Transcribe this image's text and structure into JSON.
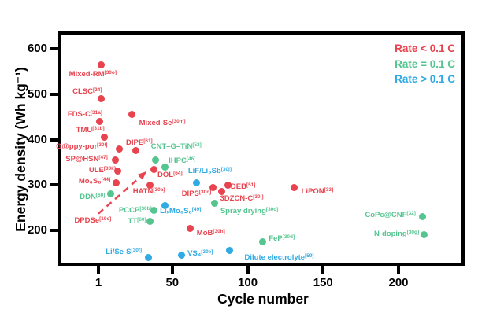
{
  "chart_data": {
    "type": "scatter",
    "title": "",
    "xlabel": "Cycle number",
    "ylabel": "Energy density (Wh kg⁻¹)",
    "x_ticks": [
      1,
      50,
      100,
      150,
      200
    ],
    "y_ticks": [
      600,
      500,
      400,
      300,
      200
    ],
    "xlim": [
      -24,
      244
    ],
    "ylim": [
      122,
      631
    ],
    "grid": false,
    "legend_position": "top-right-inside",
    "legend": [
      {
        "label": "Rate < 0.1 C",
        "color": "#e8434e"
      },
      {
        "label": "Rate = 0.1 C",
        "color": "#55c590"
      },
      {
        "label": "Rate > 0.1 C",
        "color": "#2faae3"
      }
    ],
    "series": [
      {
        "name": "Rate < 0.1 C",
        "color": "#e8434e",
        "points": [
          {
            "label": "Mixed-RM",
            "ref": "[30o]",
            "cycle": 3,
            "energy": 565,
            "dx": -11,
            "dy": 13
          },
          {
            "label": "CLSC",
            "ref": "[24]",
            "cycle": 3,
            "energy": 490,
            "dx": -18,
            "dy": -9
          },
          {
            "label": "FDS-C",
            "ref": "[31a]",
            "cycle": 2,
            "energy": 440,
            "dx": -19,
            "dy": -8
          },
          {
            "label": "TMU",
            "ref": "[31b]",
            "cycle": 5,
            "energy": 405,
            "dx": -18,
            "dy": -9
          },
          {
            "label": "Mixed-Se",
            "ref": "[30m]",
            "cycle": 23,
            "energy": 455,
            "dx": 39,
            "dy": 11
          },
          {
            "label": "G@ppy-por",
            "ref": "[30l]",
            "cycle": 15,
            "energy": 380,
            "dx": -48,
            "dy": -2
          },
          {
            "label": "DIPE",
            "ref": "[61]",
            "cycle": 26,
            "energy": 375,
            "dx": 4,
            "dy": -10
          },
          {
            "label": "SP@HSN",
            "ref": "[47]",
            "cycle": 12,
            "energy": 355,
            "dx": -36,
            "dy": 0
          },
          {
            "label": "ULE",
            "ref": "[30k]",
            "cycle": 14,
            "energy": 330,
            "dx": -20,
            "dy": -1
          },
          {
            "label": "Mo₆S₈",
            "ref": "[44]",
            "cycle": 13,
            "energy": 305,
            "dx": -28,
            "dy": -1
          },
          {
            "label": "DPDSe",
            "ref": "[19c]",
            "cycle": 3,
            "energy": 220,
            "dx": -11,
            "dy": 0,
            "dot": false
          },
          {
            "label": "DOL",
            "ref": "[64]",
            "cycle": 38,
            "energy": 335,
            "dx": 20,
            "dy": 8
          },
          {
            "label": "HATN",
            "ref": "[30a]",
            "cycle": 35,
            "energy": 300,
            "dx": -1,
            "dy": 9
          },
          {
            "label": "DIPS",
            "ref": "[30n]",
            "cycle": 77,
            "energy": 295,
            "dx": -21,
            "dy": 9
          },
          {
            "label": "DEB",
            "ref": "[51]",
            "cycle": 87,
            "energy": 300,
            "dx": 19,
            "dy": 3
          },
          {
            "label": "3DZCN-C",
            "ref": "[30i]",
            "cycle": 83,
            "energy": 285,
            "dx": 25,
            "dy": 9
          },
          {
            "label": "MoB",
            "ref": "[30h]",
            "cycle": 62,
            "energy": 205,
            "dx": 26,
            "dy": 7
          },
          {
            "label": "LiPON",
            "ref": "[33]",
            "cycle": 131,
            "energy": 295,
            "dx": 29,
            "dy": 6
          }
        ]
      },
      {
        "name": "Rate = 0.1 C",
        "color": "#55c590",
        "points": [
          {
            "label": "CNT–G–TiN",
            "ref": "[53]",
            "cycle": 39,
            "energy": 355,
            "dx": 26,
            "dy": -16
          },
          {
            "label": "IHPC",
            "ref": "[46]",
            "cycle": 45,
            "energy": 340,
            "dx": 22,
            "dy": -7
          },
          {
            "label": "DDN",
            "ref": "[60]",
            "cycle": 9,
            "energy": 280,
            "dx": -23,
            "dy": 4
          },
          {
            "label": "PCCP",
            "ref": "[30b]",
            "cycle": 38,
            "energy": 245,
            "dx": -24,
            "dy": 1
          },
          {
            "label": "TT",
            "ref": "[60]",
            "cycle": 35,
            "energy": 220,
            "dx": -16,
            "dy": 1
          },
          {
            "label": "Spray drying",
            "ref": "[30c]",
            "cycle": 78,
            "energy": 260,
            "dx": 44,
            "dy": 11
          },
          {
            "label": "FeP",
            "ref": "[30d]",
            "cycle": 110,
            "energy": 175,
            "dx": 24,
            "dy": -3
          },
          {
            "label": "CoPc@CNF",
            "ref": "[32]",
            "cycle": 216,
            "energy": 230,
            "dx": -41,
            "dy": -2
          },
          {
            "label": "N-doping",
            "ref": "[30g]",
            "cycle": 217,
            "energy": 190,
            "dx": -35,
            "dy": -1
          }
        ]
      },
      {
        "name": "Rate > 0.1 C",
        "color": "#2faae3",
        "points": [
          {
            "label": "LiF/Li₃Sb",
            "ref": "[30j]",
            "cycle": 66,
            "energy": 305,
            "dx": 17,
            "dy": -14
          },
          {
            "label": "LiₓMo₆S₈",
            "ref": "[49]",
            "cycle": 45,
            "energy": 255,
            "dx": 20,
            "dy": 8
          },
          {
            "label": "Li/Se-S",
            "ref": "[30f]",
            "cycle": 34,
            "energy": 140,
            "dx": -31,
            "dy": -7
          },
          {
            "label": "VS₄",
            "ref": "[30e]",
            "cycle": 56,
            "energy": 145,
            "dx": 24,
            "dy": -2
          },
          {
            "label": "Dilute electrolyte",
            "ref": "[59]",
            "cycle": 88,
            "energy": 155,
            "dx": 63,
            "dy": 9
          }
        ]
      }
    ],
    "trend_arrow": {
      "color": "#e8434e",
      "style": "dashed",
      "from": {
        "cycle": 1,
        "energy": 237
      },
      "to": {
        "cycle": 33,
        "energy": 330
      }
    }
  }
}
